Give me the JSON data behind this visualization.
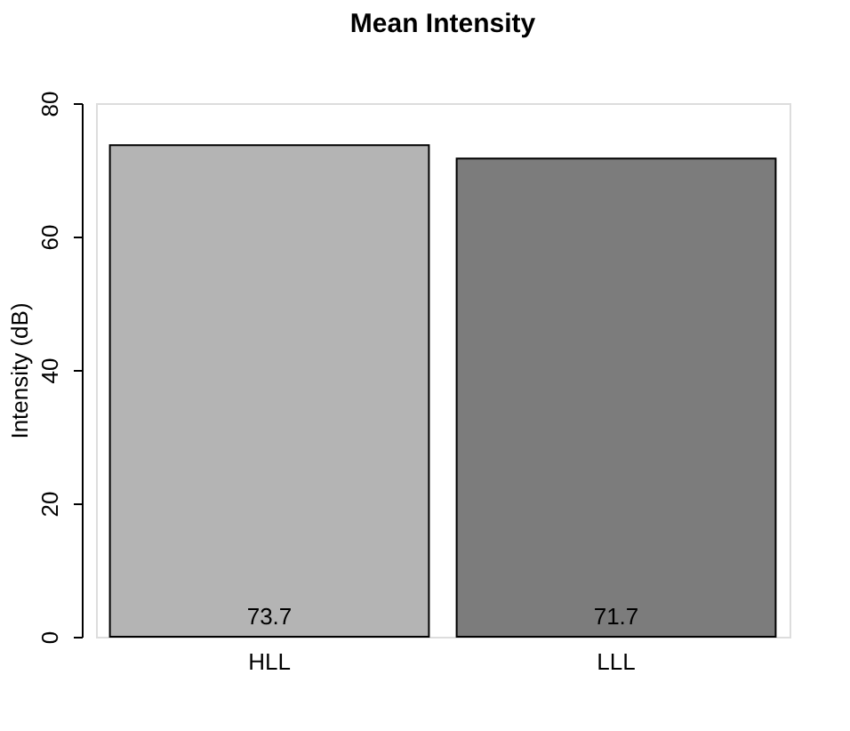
{
  "chart_data": {
    "type": "bar",
    "title": "Mean Intensity",
    "ylabel": "Intensity (dB)",
    "categories": [
      "HLL",
      "LLL"
    ],
    "values": [
      73.7,
      71.7
    ],
    "colors": [
      "#b4b4b4",
      "#7c7c7c"
    ],
    "ylim": [
      0,
      80
    ],
    "yticks": [
      0,
      20,
      40,
      60,
      80
    ],
    "data_labels": true,
    "grid": false
  }
}
